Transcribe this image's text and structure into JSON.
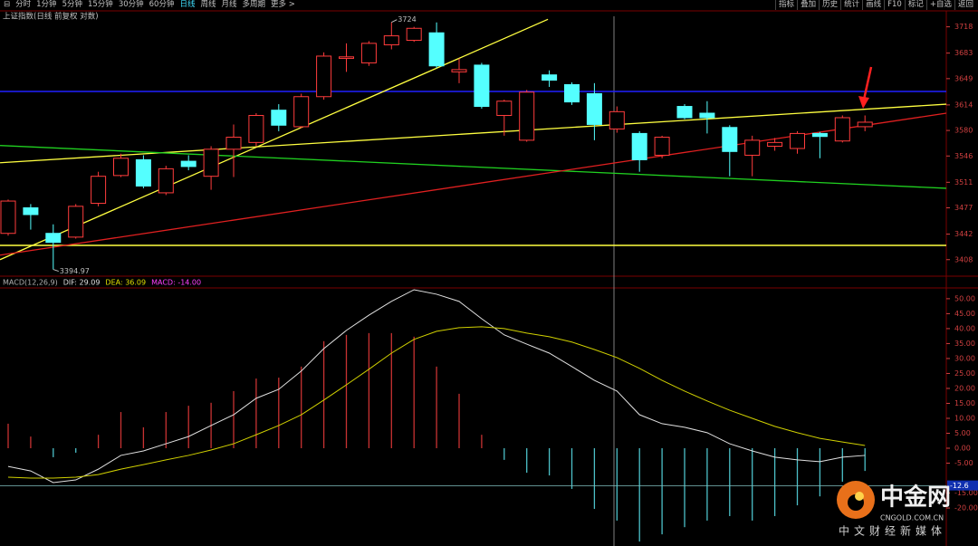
{
  "toolbar": {
    "left": [
      "分时",
      "1分钟",
      "5分钟",
      "15分钟",
      "30分钟",
      "60分钟",
      "日线",
      "周线",
      "月线",
      "多周期",
      "更多 >"
    ],
    "right": [
      "指标",
      "叠加",
      "历史",
      "统计",
      "画线",
      "F10",
      "标记",
      "+自选",
      "返回"
    ]
  },
  "watermark": {
    "brand": "中金网",
    "site": "CNGOLD.COM.CN",
    "slogan": "中文财经新媒体"
  },
  "chart_data": [
    {
      "type": "candlestick",
      "title": "上证指数(日线 前复权 对数)",
      "up_color": "#ff3c3c",
      "down_color": "#54ffff",
      "open": [
        3443,
        3477,
        3443,
        3438,
        3483,
        3520,
        3541,
        3497,
        3539,
        3519,
        3555,
        3564,
        3607,
        3585,
        3625,
        3676,
        3670,
        3694,
        3700,
        3710,
        3658,
        3667,
        3600,
        3567,
        3654,
        3641,
        3629,
        3582,
        3576,
        3547,
        3612,
        3603,
        3584,
        3547,
        3559,
        3556,
        3576,
        3566,
        3585
      ],
      "close": [
        3486,
        3468,
        3431,
        3479,
        3519,
        3543,
        3506,
        3529,
        3532,
        3555,
        3571,
        3600,
        3587,
        3625,
        3679,
        3678,
        3696,
        3706,
        3716,
        3666,
        3661,
        3612,
        3619,
        3631,
        3647,
        3618,
        3588,
        3605,
        3541,
        3571,
        3597,
        3597,
        3552,
        3567,
        3564,
        3576,
        3572,
        3597,
        3591
      ],
      "high": [
        3488,
        3482,
        3455,
        3482,
        3525,
        3549,
        3547,
        3533,
        3547,
        3559,
        3588,
        3603,
        3615,
        3629,
        3684,
        3696,
        3699,
        3724,
        3718,
        3723.85,
        3676,
        3670,
        3621,
        3634,
        3660,
        3644,
        3643,
        3612,
        3579,
        3573,
        3615,
        3619,
        3587,
        3573,
        3570,
        3579,
        3578,
        3600,
        3600
      ],
      "low": [
        3440,
        3448,
        3394.97,
        3436,
        3479,
        3518,
        3503,
        3494,
        3527,
        3501,
        3518,
        3559,
        3579,
        3583,
        3621,
        3658,
        3666,
        3688,
        3698,
        3663,
        3643,
        3609,
        3573,
        3565,
        3638,
        3614,
        3567,
        3577,
        3525,
        3543,
        3595,
        3576,
        3519,
        3519,
        3553,
        3549,
        3543,
        3564,
        3579
      ],
      "ylim": [
        3386,
        3732
      ],
      "yticks": [
        3718,
        3683,
        3649,
        3614,
        3580,
        3546,
        3511,
        3477,
        3442,
        3408
      ],
      "hlines": [
        {
          "value": 3632,
          "color": "#2020ff"
        },
        {
          "value": 3427,
          "color": "#ffff40"
        }
      ],
      "trendlines": [
        {
          "x": [
            -0.36,
            23.94
          ],
          "y": [
            3408,
            3728
          ],
          "color": "#ffff40"
        },
        {
          "x": [
            -0.36,
            41.61
          ],
          "y": [
            3537,
            3615
          ],
          "color": "#ffff40"
        },
        {
          "x": [
            -0.36,
            41.61
          ],
          "y": [
            3560,
            3503
          ],
          "color": "#20d020"
        },
        {
          "x": [
            -0.36,
            41.61
          ],
          "y": [
            3414,
            3603
          ],
          "color": "#e02020"
        }
      ]
    },
    {
      "type": "macd",
      "legend": [
        {
          "text": "MACD(12,26,9)",
          "color": "#b0b0b0"
        },
        {
          "text": "DIF: 29.09",
          "color": "#e0e0e0"
        },
        {
          "text": "DEA: 36.09",
          "color": "#e0e000"
        },
        {
          "text": "MACD: -14.00",
          "color": "#ff40ff"
        }
      ],
      "series": [
        {
          "kind": "bar",
          "up_color": "#c83232",
          "down_color": "#4cc0c8",
          "values": [
            8.2,
            3.9,
            -3.0,
            -1.5,
            4.5,
            12.1,
            7.0,
            12.1,
            14.2,
            15.2,
            19.1,
            23.3,
            23.6,
            27.3,
            35.8,
            37.9,
            38.5,
            38.5,
            37.3,
            27.3,
            18.2,
            4.5,
            -3.9,
            -8.2,
            -9.1,
            -13.6,
            -20.3,
            -24.2,
            -31.2,
            -28.8,
            -26.4,
            -24.2,
            -22.7,
            -24.2,
            -22.7,
            -19.1,
            -16.1,
            -11.2,
            -7.6
          ]
        },
        {
          "kind": "line",
          "color": "#e0e0e0",
          "values": [
            -6.1,
            -7.6,
            -11.5,
            -10.6,
            -7.0,
            -2.4,
            -0.9,
            1.5,
            3.9,
            7.6,
            11.2,
            16.7,
            19.7,
            25.8,
            33.3,
            39.4,
            44.5,
            49.1,
            53.0,
            51.5,
            49.1,
            43.3,
            37.9,
            34.8,
            31.8,
            27.3,
            22.7,
            19.1,
            11.2,
            8.2,
            7.0,
            5.2,
            1.5,
            -0.9,
            -3.0,
            -3.9,
            -4.5,
            -3.0,
            -2.4
          ]
        },
        {
          "kind": "line",
          "color": "#d0d000",
          "values": [
            -9.7,
            -10.0,
            -10.0,
            -9.7,
            -8.8,
            -7.0,
            -5.5,
            -3.9,
            -2.4,
            -0.6,
            1.5,
            4.5,
            7.6,
            11.2,
            16.1,
            21.2,
            26.4,
            31.8,
            36.4,
            39.1,
            40.3,
            40.6,
            40.0,
            38.5,
            37.3,
            35.5,
            33.0,
            30.3,
            26.7,
            22.7,
            19.1,
            15.8,
            12.7,
            10.0,
            7.3,
            5.2,
            3.3,
            2.1,
            0.9
          ]
        }
      ],
      "ylim": [
        -32.7,
        53.6
      ],
      "yticks": [
        {
          "value": 50,
          "label": "50.00"
        },
        {
          "value": 45,
          "label": "45.00"
        },
        {
          "value": 40,
          "label": "40.00"
        },
        {
          "value": 35,
          "label": "35.00"
        },
        {
          "value": 30,
          "label": "30.00"
        },
        {
          "value": 25,
          "label": "25.00"
        },
        {
          "value": 20,
          "label": "20.00"
        },
        {
          "value": 15,
          "label": "15.00"
        },
        {
          "value": 10,
          "label": "10.00"
        },
        {
          "value": 5,
          "label": "5.00"
        },
        {
          "value": 0,
          "label": "0.00"
        },
        {
          "value": -5,
          "label": "-5.00"
        },
        {
          "value": -15,
          "label": "-15.00"
        },
        {
          "value": -20,
          "label": "-20.00"
        }
      ],
      "cursor_value": -12.6
    }
  ]
}
